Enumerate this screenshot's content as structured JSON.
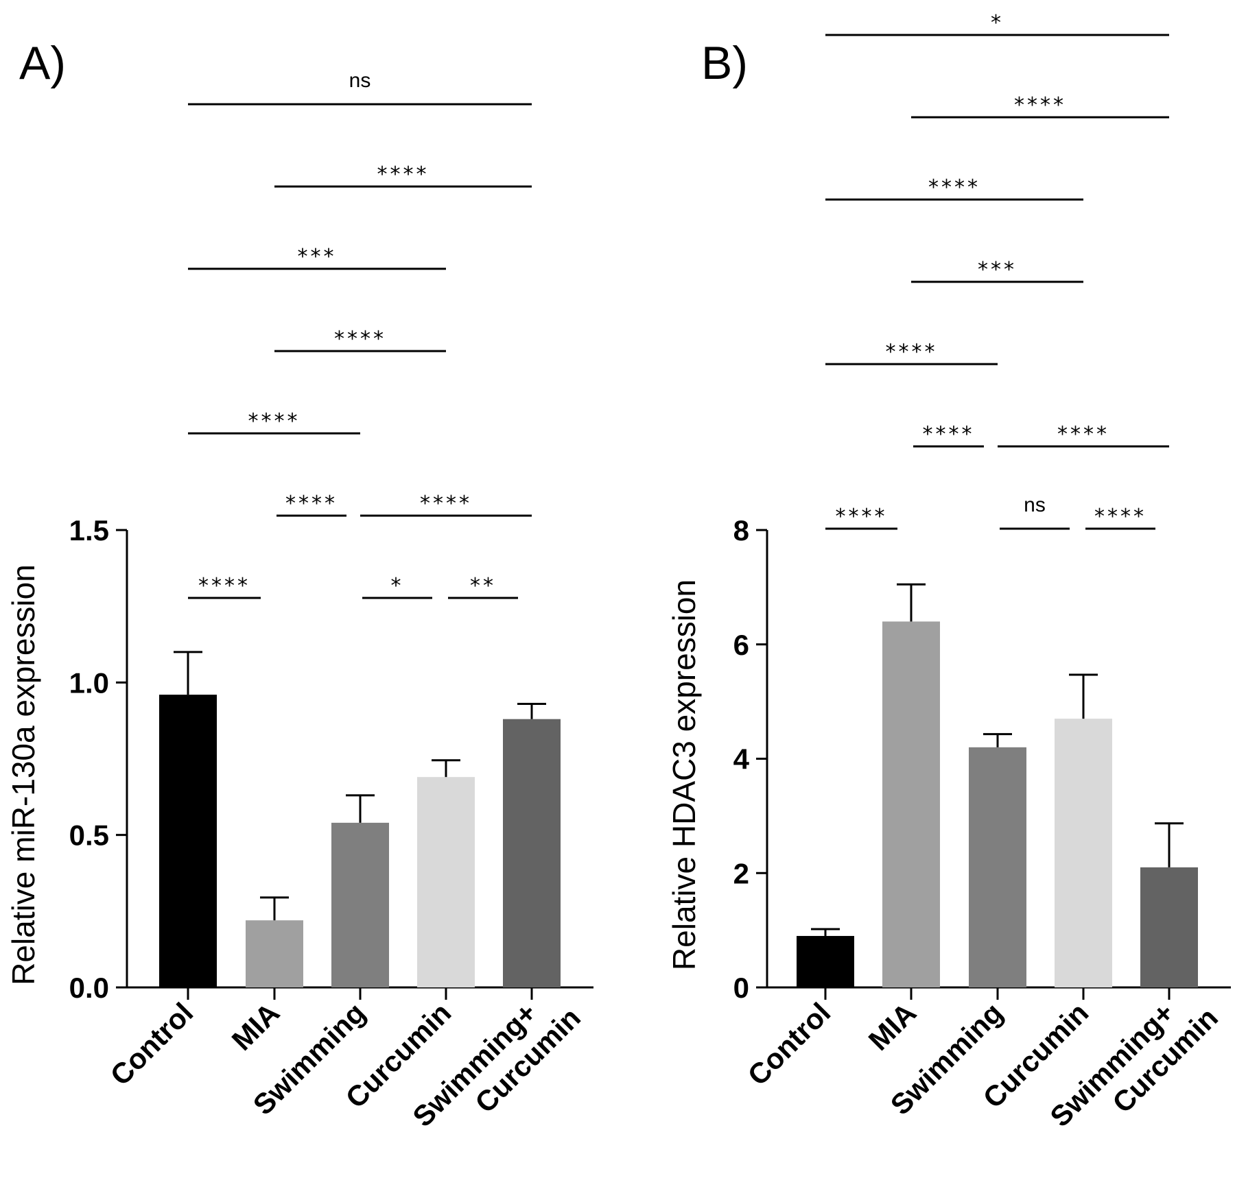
{
  "chart_data": [
    {
      "type": "bar",
      "panel": "A)",
      "ylabel": "Relative miR-130a expression",
      "ylim": [
        0,
        1.5
      ],
      "yticks": [
        "0.0",
        "0.5",
        "1.0",
        "1.5"
      ],
      "categories": [
        {
          "line1": "Control",
          "line2": ""
        },
        {
          "line1": "MIA",
          "line2": ""
        },
        {
          "line1": "Swimming",
          "line2": ""
        },
        {
          "line1": "Curcumin",
          "line2": ""
        },
        {
          "line1": "Swimming+",
          "line2": "Curcumin"
        }
      ],
      "values": [
        0.96,
        0.22,
        0.54,
        0.69,
        0.88
      ],
      "errors": [
        0.14,
        0.075,
        0.09,
        0.055,
        0.05
      ],
      "colors": [
        "#000000",
        "#a0a0a0",
        "#7f7f7f",
        "#d9d9d9",
        "#636363"
      ],
      "comparisons": [
        {
          "from": 0,
          "to": 1,
          "label": "****"
        },
        {
          "from": 2,
          "to": 3,
          "label": "*"
        },
        {
          "from": 3,
          "to": 4,
          "label": "**"
        },
        {
          "from": 1,
          "to": 2,
          "label": "****"
        },
        {
          "from": 2,
          "to": 4,
          "label": "****"
        },
        {
          "from": 0,
          "to": 2,
          "label": "****"
        },
        {
          "from": 1,
          "to": 3,
          "label": "****"
        },
        {
          "from": 0,
          "to": 3,
          "label": "***"
        },
        {
          "from": 1,
          "to": 4,
          "label": "****"
        },
        {
          "from": 0,
          "to": 4,
          "label": "ns"
        }
      ]
    },
    {
      "type": "bar",
      "panel": "B)",
      "ylabel": "Relative HDAC3 expression",
      "ylim": [
        0,
        8
      ],
      "yticks": [
        "0",
        "2",
        "4",
        "6",
        "8"
      ],
      "categories": [
        {
          "line1": "Control",
          "line2": ""
        },
        {
          "line1": "MIA",
          "line2": ""
        },
        {
          "line1": "Swimming",
          "line2": ""
        },
        {
          "line1": "Curcumin",
          "line2": ""
        },
        {
          "line1": "Swimming+",
          "line2": "Curcumin"
        }
      ],
      "values": [
        0.9,
        6.4,
        4.2,
        4.7,
        2.1
      ],
      "errors": [
        0.12,
        0.65,
        0.23,
        0.77,
        0.77
      ],
      "colors": [
        "#000000",
        "#a0a0a0",
        "#7f7f7f",
        "#d9d9d9",
        "#636363"
      ],
      "comparisons": [
        {
          "from": 0,
          "to": 1,
          "label": "****"
        },
        {
          "from": 2,
          "to": 3,
          "label": "ns"
        },
        {
          "from": 3,
          "to": 4,
          "label": "****"
        },
        {
          "from": 1,
          "to": 2,
          "label": "****"
        },
        {
          "from": 2,
          "to": 4,
          "label": "****"
        },
        {
          "from": 0,
          "to": 2,
          "label": "****"
        },
        {
          "from": 1,
          "to": 3,
          "label": "***"
        },
        {
          "from": 0,
          "to": 3,
          "label": "****"
        },
        {
          "from": 1,
          "to": 4,
          "label": "****"
        },
        {
          "from": 0,
          "to": 4,
          "label": "*"
        }
      ]
    }
  ]
}
